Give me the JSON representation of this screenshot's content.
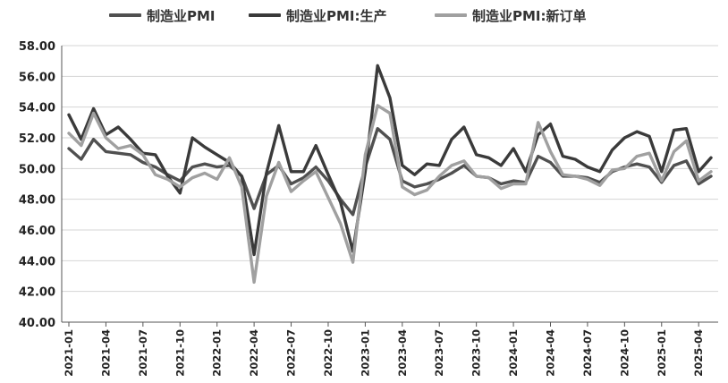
{
  "chart_data": {
    "type": "line",
    "title": "",
    "xlabel": "",
    "ylabel": "",
    "ylim": [
      40,
      58
    ],
    "yticks": [
      "40.00",
      "42.00",
      "44.00",
      "46.00",
      "48.00",
      "50.00",
      "52.00",
      "54.00",
      "56.00",
      "58.00"
    ],
    "xtick_labels": [
      "2021-01",
      "2021-04",
      "2021-07",
      "2021-10",
      "2022-01",
      "2022-04",
      "2022-07",
      "2022-10",
      "2023-01",
      "2023-04",
      "2023-07",
      "2023-10",
      "2024-01",
      "2024-04",
      "2024-07",
      "2024-10",
      "2025-01",
      "2025-04"
    ],
    "grid": "horizontal",
    "legend_position": "top",
    "x": [
      "2021-01",
      "2021-02",
      "2021-03",
      "2021-04",
      "2021-05",
      "2021-06",
      "2021-07",
      "2021-08",
      "2021-09",
      "2021-10",
      "2021-11",
      "2021-12",
      "2022-01",
      "2022-02",
      "2022-03",
      "2022-04",
      "2022-05",
      "2022-06",
      "2022-07",
      "2022-08",
      "2022-09",
      "2022-10",
      "2022-11",
      "2022-12",
      "2023-01",
      "2023-02",
      "2023-03",
      "2023-04",
      "2023-05",
      "2023-06",
      "2023-07",
      "2023-08",
      "2023-09",
      "2023-10",
      "2023-11",
      "2023-12",
      "2024-01",
      "2024-02",
      "2024-03",
      "2024-04",
      "2024-05",
      "2024-06",
      "2024-07",
      "2024-08",
      "2024-09",
      "2024-10",
      "2024-11",
      "2024-12",
      "2025-01",
      "2025-02",
      "2025-03",
      "2025-04",
      "2025-05"
    ],
    "series": [
      {
        "name": "制造业PMI",
        "color": "#505050",
        "values": [
          51.3,
          50.6,
          51.9,
          51.1,
          51.0,
          50.9,
          50.4,
          50.1,
          49.6,
          49.2,
          50.1,
          50.3,
          50.1,
          50.2,
          49.5,
          47.4,
          49.6,
          50.2,
          49.0,
          49.4,
          50.1,
          49.2,
          48.0,
          47.0,
          50.1,
          52.6,
          51.9,
          49.2,
          48.8,
          49.0,
          49.3,
          49.7,
          50.2,
          49.5,
          49.4,
          49.0,
          49.2,
          49.1,
          50.8,
          50.4,
          49.5,
          49.5,
          49.4,
          49.1,
          49.8,
          50.1,
          50.3,
          50.1,
          49.1,
          50.2,
          50.5,
          49.0,
          49.5
        ]
      },
      {
        "name": "制造业PMI:生产",
        "color": "#3a3a3a",
        "values": [
          53.5,
          51.9,
          53.9,
          52.2,
          52.7,
          51.9,
          51.0,
          50.9,
          49.5,
          48.4,
          52.0,
          51.4,
          50.9,
          50.4,
          49.5,
          44.4,
          49.7,
          52.8,
          49.8,
          49.8,
          51.5,
          49.6,
          47.8,
          44.6,
          49.8,
          56.7,
          54.6,
          50.2,
          49.6,
          50.3,
          50.2,
          51.9,
          52.7,
          50.9,
          50.7,
          50.2,
          51.3,
          49.8,
          52.2,
          52.9,
          50.8,
          50.6,
          50.1,
          49.8,
          51.2,
          52.0,
          52.4,
          52.1,
          49.8,
          52.5,
          52.6,
          49.8,
          50.7
        ]
      },
      {
        "name": "制造业PMI:新订单",
        "color": "#a0a0a0",
        "values": [
          52.3,
          51.5,
          53.6,
          52.0,
          51.3,
          51.5,
          50.9,
          49.6,
          49.3,
          48.8,
          49.4,
          49.7,
          49.3,
          50.7,
          48.8,
          42.6,
          48.2,
          50.4,
          48.5,
          49.2,
          49.8,
          48.1,
          46.4,
          43.9,
          50.9,
          54.1,
          53.6,
          48.8,
          48.3,
          48.6,
          49.5,
          50.2,
          50.5,
          49.5,
          49.4,
          48.7,
          49.0,
          49.0,
          53.0,
          51.1,
          49.6,
          49.5,
          49.3,
          48.9,
          49.9,
          50.0,
          50.8,
          51.0,
          49.2,
          51.1,
          51.8,
          49.2,
          49.8
        ]
      }
    ]
  }
}
